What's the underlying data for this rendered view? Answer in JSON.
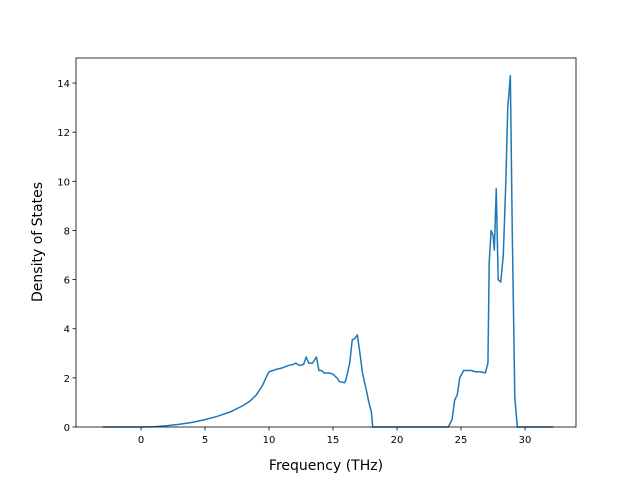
{
  "chart_data": {
    "type": "line",
    "x_label": "Frequency (THz)",
    "y_label": "Density of States",
    "x": [
      -3,
      0,
      1,
      2,
      3,
      4,
      5,
      6,
      7,
      8,
      8.5,
      9,
      9.5,
      9.8,
      10,
      10.3,
      10.6,
      11,
      11.5,
      11.9,
      12.1,
      12.4,
      12.7,
      12.9,
      13.1,
      13.4,
      13.7,
      13.9,
      14.1,
      14.3,
      14.7,
      15.0,
      15.3,
      15.5,
      15.9,
      16.0,
      16.3,
      16.5,
      16.7,
      16.9,
      17.1,
      17.3,
      17.6,
      17.8,
      18.0,
      18.1,
      24.0,
      24.3,
      24.5,
      24.7,
      24.9,
      25.2,
      25.5,
      25.8,
      26.1,
      26.5,
      26.9,
      27.1,
      27.2,
      27.35,
      27.5,
      27.6,
      27.75,
      27.9,
      28.1,
      28.3,
      28.5,
      28.65,
      28.85,
      29.0,
      29.2,
      29.4,
      32.2
    ],
    "values": [
      0,
      0,
      0.01,
      0.05,
      0.11,
      0.19,
      0.3,
      0.44,
      0.62,
      0.88,
      1.05,
      1.3,
      1.7,
      2.05,
      2.25,
      2.3,
      2.35,
      2.4,
      2.5,
      2.55,
      2.6,
      2.5,
      2.55,
      2.85,
      2.6,
      2.6,
      2.85,
      2.3,
      2.3,
      2.2,
      2.2,
      2.15,
      2.0,
      1.85,
      1.8,
      1.9,
      2.6,
      3.55,
      3.6,
      3.75,
      3.0,
      2.2,
      1.5,
      1.0,
      0.6,
      0,
      0,
      0.3,
      1.1,
      1.3,
      2.0,
      2.3,
      2.3,
      2.3,
      2.25,
      2.25,
      2.2,
      2.6,
      6.7,
      8.0,
      7.8,
      7.2,
      9.7,
      6.0,
      5.9,
      7.0,
      10,
      13,
      14.3,
      8,
      1.2,
      0,
      0
    ],
    "color": "#1f77b4",
    "xlim": [
      -5.08,
      33.98
    ],
    "xticks": [
      0,
      5,
      10,
      15,
      20,
      25,
      30
    ],
    "ylim": [
      0,
      15.02
    ],
    "yticks": [
      0,
      2,
      4,
      6,
      8,
      10,
      12,
      14
    ]
  }
}
